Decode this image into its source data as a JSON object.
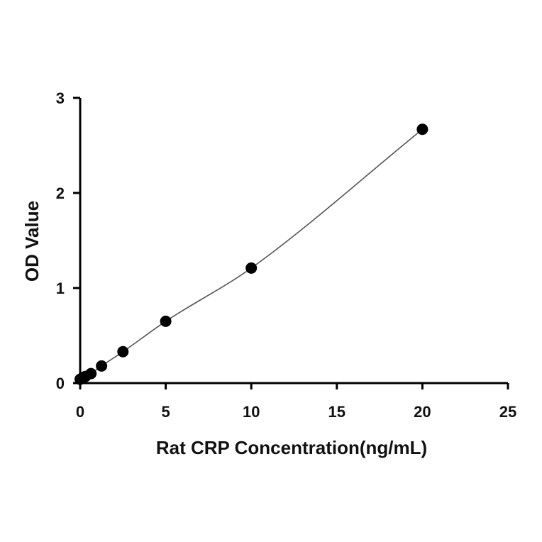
{
  "chart_data": {
    "type": "scatter",
    "xlabel": "Rat CRP Concentration(ng/mL)",
    "ylabel": "OD Value",
    "xlim": [
      0,
      25
    ],
    "ylim": [
      0,
      3
    ],
    "x_ticks": [
      "0",
      "5",
      "10",
      "15",
      "20",
      "25"
    ],
    "y_ticks": [
      "0",
      "1",
      "2",
      "3"
    ],
    "grid": false,
    "legend": "none",
    "series": [
      {
        "points": [
          {
            "x": 0,
            "y": 0.04
          },
          {
            "x": 0.16,
            "y": 0.06
          },
          {
            "x": 0.31,
            "y": 0.07
          },
          {
            "x": 0.63,
            "y": 0.1
          },
          {
            "x": 1.25,
            "y": 0.18
          },
          {
            "x": 2.5,
            "y": 0.33
          },
          {
            "x": 5,
            "y": 0.65
          },
          {
            "x": 10,
            "y": 1.21
          },
          {
            "x": 20,
            "y": 2.67
          }
        ],
        "fit": "curve",
        "marker_color": "#000000",
        "line_color": "#555555"
      }
    ]
  }
}
